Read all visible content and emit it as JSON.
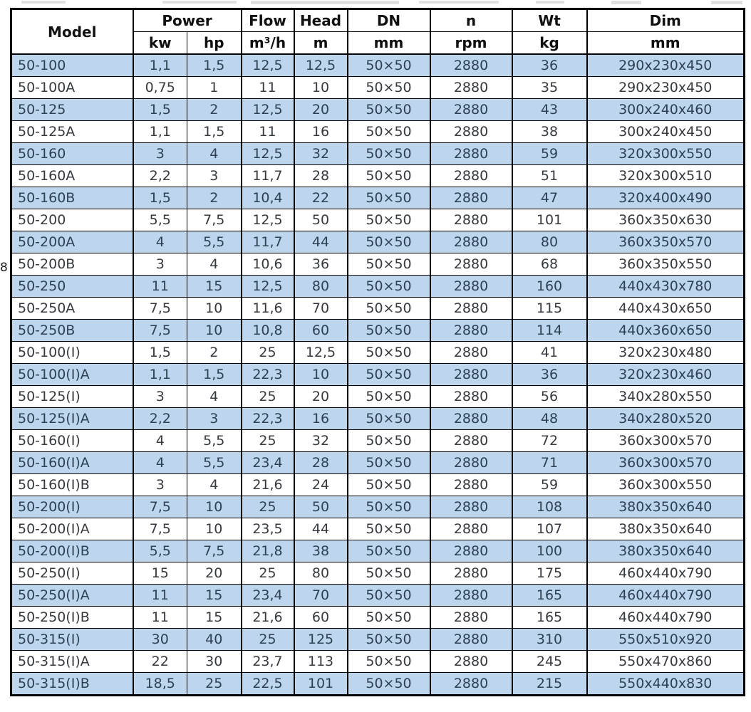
{
  "page": {
    "margin_note": "8"
  },
  "colors": {
    "row_alt_background": "#bdd6ee",
    "row_plain_background": "#ffffff",
    "alt_row_text": "#2e4053",
    "plain_row_text": "#36393d",
    "header_text": "#101010",
    "border": "#000000"
  },
  "table": {
    "header": {
      "model": "Model",
      "groups": [
        {
          "label": "Power"
        },
        {
          "label": "Flow"
        },
        {
          "label": "Head"
        },
        {
          "label": "DN"
        },
        {
          "label": "n"
        },
        {
          "label": "Wt"
        },
        {
          "label": "Dim"
        }
      ],
      "units": [
        "kw",
        "hp",
        "m³/h",
        "m",
        "mm",
        "rpm",
        "kg",
        "mm"
      ]
    },
    "rows": [
      {
        "model": "50-100",
        "kw": "1,1",
        "hp": "1,5",
        "flow": "12,5",
        "head": "12,5",
        "dn": "50×50",
        "rpm": "2880",
        "wt": "36",
        "dim": "290x230x450"
      },
      {
        "model": "50-100A",
        "kw": "0,75",
        "hp": "1",
        "flow": "11",
        "head": "10",
        "dn": "50×50",
        "rpm": "2880",
        "wt": "35",
        "dim": "290x230x450"
      },
      {
        "model": "50-125",
        "kw": "1,5",
        "hp": "2",
        "flow": "12,5",
        "head": "20",
        "dn": "50×50",
        "rpm": "2880",
        "wt": "43",
        "dim": "300x240x460"
      },
      {
        "model": "50-125A",
        "kw": "1,1",
        "hp": "1,5",
        "flow": "11",
        "head": "16",
        "dn": "50×50",
        "rpm": "2880",
        "wt": "38",
        "dim": "300x240x450"
      },
      {
        "model": "50-160",
        "kw": "3",
        "hp": "4",
        "flow": "12,5",
        "head": "32",
        "dn": "50×50",
        "rpm": "2880",
        "wt": "59",
        "dim": "320x300x550"
      },
      {
        "model": "50-160A",
        "kw": "2,2",
        "hp": "3",
        "flow": "11,7",
        "head": "28",
        "dn": "50×50",
        "rpm": "2880",
        "wt": "51",
        "dim": "320x300x510"
      },
      {
        "model": "50-160B",
        "kw": "1,5",
        "hp": "2",
        "flow": "10,4",
        "head": "22",
        "dn": "50×50",
        "rpm": "2880",
        "wt": "47",
        "dim": "320x400x490"
      },
      {
        "model": "50-200",
        "kw": "5,5",
        "hp": "7,5",
        "flow": "12,5",
        "head": "50",
        "dn": "50×50",
        "rpm": "2880",
        "wt": "101",
        "dim": "360x350x630"
      },
      {
        "model": "50-200A",
        "kw": "4",
        "hp": "5,5",
        "flow": "11,7",
        "head": "44",
        "dn": "50×50",
        "rpm": "2880",
        "wt": "80",
        "dim": "360x350x570"
      },
      {
        "model": "50-200B",
        "kw": "3",
        "hp": "4",
        "flow": "10,6",
        "head": "36",
        "dn": "50×50",
        "rpm": "2880",
        "wt": "68",
        "dim": "360x350x550"
      },
      {
        "model": "50-250",
        "kw": "11",
        "hp": "15",
        "flow": "12,5",
        "head": "80",
        "dn": "50×50",
        "rpm": "2880",
        "wt": "160",
        "dim": "440x430x780"
      },
      {
        "model": "50-250A",
        "kw": "7,5",
        "hp": "10",
        "flow": "11,6",
        "head": "70",
        "dn": "50×50",
        "rpm": "2880",
        "wt": "115",
        "dim": "440x430x650"
      },
      {
        "model": "50-250B",
        "kw": "7,5",
        "hp": "10",
        "flow": "10,8",
        "head": "60",
        "dn": "50×50",
        "rpm": "2880",
        "wt": "114",
        "dim": "440x360x650"
      },
      {
        "model": "50-100(I)",
        "kw": "1,5",
        "hp": "2",
        "flow": "25",
        "head": "12,5",
        "dn": "50×50",
        "rpm": "2880",
        "wt": "41",
        "dim": "320x230x480"
      },
      {
        "model": "50-100(I)A",
        "kw": "1,1",
        "hp": "1,5",
        "flow": "22,3",
        "head": "10",
        "dn": "50×50",
        "rpm": "2880",
        "wt": "36",
        "dim": "320x230x460"
      },
      {
        "model": "50-125(I)",
        "kw": "3",
        "hp": "4",
        "flow": "25",
        "head": "20",
        "dn": "50×50",
        "rpm": "2880",
        "wt": "56",
        "dim": "340x280x550"
      },
      {
        "model": "50-125(I)A",
        "kw": "2,2",
        "hp": "3",
        "flow": "22,3",
        "head": "16",
        "dn": "50×50",
        "rpm": "2880",
        "wt": "48",
        "dim": "340x280x520"
      },
      {
        "model": "50-160(I)",
        "kw": "4",
        "hp": "5,5",
        "flow": "25",
        "head": "32",
        "dn": "50×50",
        "rpm": "2880",
        "wt": "72",
        "dim": "360x300x570"
      },
      {
        "model": "50-160(I)A",
        "kw": "4",
        "hp": "5,5",
        "flow": "23,4",
        "head": "28",
        "dn": "50×50",
        "rpm": "2880",
        "wt": "71",
        "dim": "360x300x570"
      },
      {
        "model": "50-160(I)B",
        "kw": "3",
        "hp": "4",
        "flow": "21,6",
        "head": "24",
        "dn": "50×50",
        "rpm": "2880",
        "wt": "59",
        "dim": "360x300x550"
      },
      {
        "model": "50-200(I)",
        "kw": "7,5",
        "hp": "10",
        "flow": "25",
        "head": "50",
        "dn": "50×50",
        "rpm": "2880",
        "wt": "108",
        "dim": "380x350x640"
      },
      {
        "model": "50-200(I)A",
        "kw": "7,5",
        "hp": "10",
        "flow": "23,5",
        "head": "44",
        "dn": "50×50",
        "rpm": "2880",
        "wt": "107",
        "dim": "380x350x640"
      },
      {
        "model": "50-200(I)B",
        "kw": "5,5",
        "hp": "7,5",
        "flow": "21,8",
        "head": "38",
        "dn": "50×50",
        "rpm": "2880",
        "wt": "100",
        "dim": "380x350x640"
      },
      {
        "model": "50-250(I)",
        "kw": "15",
        "hp": "20",
        "flow": "25",
        "head": "80",
        "dn": "50×50",
        "rpm": "2880",
        "wt": "175",
        "dim": "460x440x790"
      },
      {
        "model": "50-250(I)A",
        "kw": "11",
        "hp": "15",
        "flow": "23,4",
        "head": "70",
        "dn": "50×50",
        "rpm": "2880",
        "wt": "165",
        "dim": "460x440x790"
      },
      {
        "model": "50-250(I)B",
        "kw": "11",
        "hp": "15",
        "flow": "21,6",
        "head": "60",
        "dn": "50×50",
        "rpm": "2880",
        "wt": "165",
        "dim": "460x440x790"
      },
      {
        "model": "50-315(I)",
        "kw": "30",
        "hp": "40",
        "flow": "25",
        "head": "125",
        "dn": "50×50",
        "rpm": "2880",
        "wt": "310",
        "dim": "550x510x920"
      },
      {
        "model": "50-315(I)A",
        "kw": "22",
        "hp": "30",
        "flow": "23,7",
        "head": "113",
        "dn": "50×50",
        "rpm": "2880",
        "wt": "245",
        "dim": "550x470x860"
      },
      {
        "model": "50-315(I)B",
        "kw": "18,5",
        "hp": "25",
        "flow": "22,5",
        "head": "101",
        "dn": "50×50",
        "rpm": "2880",
        "wt": "215",
        "dim": "550x440x830"
      }
    ]
  }
}
